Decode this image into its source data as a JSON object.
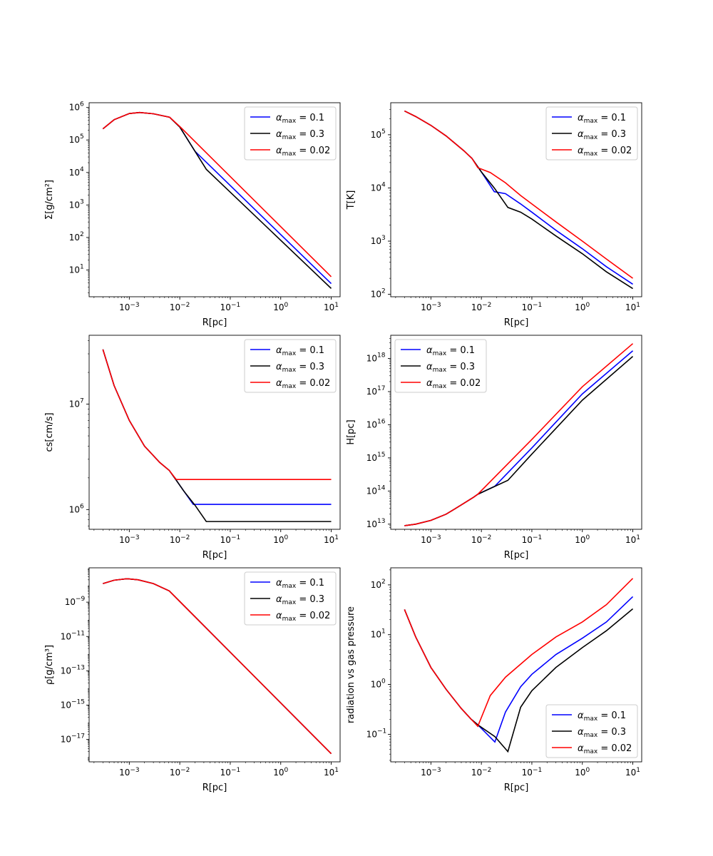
{
  "figure": {
    "chart_data": [
      {
        "type": "line",
        "xlabel": "R[pc]",
        "ylabel": "Σ[g/cm²]",
        "xscale": "log",
        "yscale": "log",
        "xlim": [
          0.00016,
          15
        ],
        "ylim": [
          1.5,
          1400000
        ],
        "xticks": [
          {
            "v": 0.001,
            "m": "10",
            "e": "−3"
          },
          {
            "v": 0.01,
            "m": "10",
            "e": "−2"
          },
          {
            "v": 0.1,
            "m": "10",
            "e": "−1"
          },
          {
            "v": 1,
            "m": "10",
            "e": "0"
          },
          {
            "v": 10,
            "m": "10",
            "e": "1"
          }
        ],
        "yticks": [
          {
            "v": 10,
            "m": "10",
            "e": "1"
          },
          {
            "v": 100,
            "m": "10",
            "e": "2"
          },
          {
            "v": 1000,
            "m": "10",
            "e": "3"
          },
          {
            "v": 10000,
            "m": "10",
            "e": "4"
          },
          {
            "v": 100000,
            "m": "10",
            "e": "5"
          },
          {
            "v": 1000000,
            "m": "10",
            "e": "6"
          }
        ],
        "legend": "upper-right",
        "series": [
          {
            "name": "α_max = 0.1",
            "color": "#0000ff",
            "x": [
              0.0003,
              0.0005,
              0.001,
              0.0016,
              0.003,
              0.0063,
              0.01,
              0.02,
              10
            ],
            "y": [
              220000,
              420000,
              650000,
              700000,
              640000,
              500000,
              250000,
              45000,
              3.8
            ]
          },
          {
            "name": "α_max = 0.3",
            "color": "#000000",
            "x": [
              0.0003,
              0.0005,
              0.001,
              0.0016,
              0.003,
              0.0063,
              0.01,
              0.0335,
              10
            ],
            "y": [
              220000,
              420000,
              650000,
              700000,
              640000,
              500000,
              250000,
              12500,
              2.7
            ]
          },
          {
            "name": "α_max = 0.02",
            "color": "#ff0000",
            "x": [
              0.0003,
              0.0005,
              0.001,
              0.0016,
              0.003,
              0.0063,
              0.01,
              10
            ],
            "y": [
              220000,
              420000,
              650000,
              700000,
              640000,
              500000,
              260000,
              6.2
            ]
          }
        ]
      },
      {
        "type": "line",
        "xlabel": "R[pc]",
        "ylabel": "T[K]",
        "xscale": "log",
        "yscale": "log",
        "xlim": [
          0.00016,
          15
        ],
        "ylim": [
          90,
          400000
        ],
        "xticks": [
          {
            "v": 0.001,
            "m": "10",
            "e": "−3"
          },
          {
            "v": 0.01,
            "m": "10",
            "e": "−2"
          },
          {
            "v": 0.1,
            "m": "10",
            "e": "−1"
          },
          {
            "v": 1,
            "m": "10",
            "e": "0"
          },
          {
            "v": 10,
            "m": "10",
            "e": "1"
          }
        ],
        "yticks": [
          {
            "v": 100,
            "m": "10",
            "e": "2"
          },
          {
            "v": 1000,
            "m": "10",
            "e": "3"
          },
          {
            "v": 10000,
            "m": "10",
            "e": "4"
          },
          {
            "v": 100000,
            "m": "10",
            "e": "5"
          }
        ],
        "legend": "upper-right",
        "series": [
          {
            "name": "α_max = 0.1",
            "color": "#0000ff",
            "x": [
              0.0003,
              0.0005,
              0.001,
              0.002,
              0.0045,
              0.0065,
              0.01,
              0.018,
              0.03,
              0.06,
              0.1,
              0.3,
              1,
              3,
              10
            ],
            "y": [
              280000,
              220000,
              150000,
              95000,
              50000,
              36000,
              20000,
              8500,
              7800,
              5000,
              3500,
              1600,
              720,
              330,
              155
            ]
          },
          {
            "name": "α_max = 0.3",
            "color": "#000000",
            "x": [
              0.0003,
              0.0005,
              0.001,
              0.002,
              0.0045,
              0.0065,
              0.01,
              0.018,
              0.0335,
              0.06,
              0.1,
              0.3,
              1,
              3,
              10
            ],
            "y": [
              280000,
              220000,
              150000,
              95000,
              50000,
              36000,
              20000,
              10000,
              4300,
              3500,
              2600,
              1250,
              580,
              265,
              128
            ]
          },
          {
            "name": "α_max = 0.02",
            "color": "#ff0000",
            "x": [
              0.0003,
              0.0005,
              0.001,
              0.002,
              0.0045,
              0.0065,
              0.0085,
              0.015,
              0.03,
              0.06,
              0.1,
              0.3,
              1,
              3,
              10
            ],
            "y": [
              280000,
              220000,
              150000,
              95000,
              50000,
              36000,
              24000,
              19500,
              12500,
              7200,
              5000,
              2300,
              1000,
              460,
              200
            ]
          }
        ]
      },
      {
        "type": "line",
        "xlabel": "R[pc]",
        "ylabel": "cs[cm/s]",
        "xscale": "log",
        "yscale": "log",
        "xlim": [
          0.00016,
          15
        ],
        "ylim": [
          650000,
          45000000
        ],
        "xticks": [
          {
            "v": 0.001,
            "m": "10",
            "e": "−3"
          },
          {
            "v": 0.01,
            "m": "10",
            "e": "−2"
          },
          {
            "v": 0.1,
            "m": "10",
            "e": "−1"
          },
          {
            "v": 1,
            "m": "10",
            "e": "0"
          },
          {
            "v": 10,
            "m": "10",
            "e": "1"
          }
        ],
        "yticks": [
          {
            "v": 1000000,
            "m": "10",
            "e": "6"
          },
          {
            "v": 10000000,
            "m": "10",
            "e": "7"
          }
        ],
        "legend": "upper-right",
        "series": [
          {
            "name": "α_max = 0.1",
            "color": "#0000ff",
            "x": [
              0.0003,
              0.0005,
              0.001,
              0.002,
              0.004,
              0.0062,
              0.0085,
              0.012,
              0.0185,
              10
            ],
            "y": [
              33000000,
              15000000,
              7000000,
              4000000,
              2800000,
              2350000,
              1900000,
              1500000,
              1120000,
              1120000
            ]
          },
          {
            "name": "α_max = 0.3",
            "color": "#000000",
            "x": [
              0.0003,
              0.0005,
              0.001,
              0.002,
              0.004,
              0.0062,
              0.0085,
              0.012,
              0.02,
              0.0335,
              10
            ],
            "y": [
              33000000,
              15000000,
              7000000,
              4000000,
              2800000,
              2350000,
              1900000,
              1500000,
              1100000,
              770000,
              770000
            ]
          },
          {
            "name": "α_max = 0.02",
            "color": "#ff0000",
            "x": [
              0.0003,
              0.0005,
              0.001,
              0.002,
              0.004,
              0.0062,
              0.0085,
              10
            ],
            "y": [
              33000000,
              15000000,
              7000000,
              4000000,
              2800000,
              2350000,
              1930000,
              1930000
            ]
          }
        ]
      },
      {
        "type": "line",
        "xlabel": "R[pc]",
        "ylabel": "H[pc]",
        "xscale": "log",
        "yscale": "log",
        "xlim": [
          0.00016,
          15
        ],
        "ylim": [
          7000000000000,
          5000000000000000000
        ],
        "xticks": [
          {
            "v": 0.001,
            "m": "10",
            "e": "−3"
          },
          {
            "v": 0.01,
            "m": "10",
            "e": "−2"
          },
          {
            "v": 0.1,
            "m": "10",
            "e": "−1"
          },
          {
            "v": 1,
            "m": "10",
            "e": "0"
          },
          {
            "v": 10,
            "m": "10",
            "e": "1"
          }
        ],
        "yticks": [
          {
            "v": 10000000000000,
            "m": "10",
            "e": "13"
          },
          {
            "v": 100000000000000,
            "m": "10",
            "e": "14"
          },
          {
            "v": 1000000000000000,
            "m": "10",
            "e": "15"
          },
          {
            "v": 10000000000000000,
            "m": "10",
            "e": "16"
          },
          {
            "v": 100000000000000000,
            "m": "10",
            "e": "17"
          },
          {
            "v": 1000000000000000000,
            "m": "10",
            "e": "18"
          }
        ],
        "legend": "upper-left",
        "series": [
          {
            "name": "α_max = 0.1",
            "color": "#0000ff",
            "x": [
              0.0003,
              0.0005,
              0.001,
              0.002,
              0.004,
              0.007,
              0.0085,
              0.0185,
              0.1,
              1,
              10
            ],
            "y": [
              9000000000000,
              10000000000000,
              13000000000000,
              20000000000000,
              38000000000000,
              65000000000000,
              80000000000000,
              140000000000000,
              2000000000000000,
              85000000000000000,
              1700000000000000000
            ]
          },
          {
            "name": "α_max = 0.3",
            "color": "#000000",
            "x": [
              0.0003,
              0.0005,
              0.001,
              0.002,
              0.004,
              0.007,
              0.0085,
              0.0335,
              0.1,
              1,
              10
            ],
            "y": [
              9000000000000,
              10000000000000,
              13000000000000,
              20000000000000,
              38000000000000,
              65000000000000,
              80000000000000,
              210000000000000,
              1300000000000000,
              55000000000000000,
              1150000000000000000
            ]
          },
          {
            "name": "α_max = 0.02",
            "color": "#ff0000",
            "x": [
              0.0003,
              0.0005,
              0.001,
              0.002,
              0.004,
              0.007,
              0.0085,
              0.1,
              1,
              10
            ],
            "y": [
              9000000000000,
              10000000000000,
              13000000000000,
              20000000000000,
              38000000000000,
              65000000000000,
              80000000000000,
              3600000000000000,
              140000000000000000,
              2800000000000000000
            ]
          }
        ]
      },
      {
        "type": "line",
        "xlabel": "R[pc]",
        "ylabel": "ρ[g/cm³]",
        "xscale": "log",
        "yscale": "log",
        "xlim": [
          0.00016,
          15
        ],
        "ylim": [
          5e-19,
          1e-07
        ],
        "xticks": [
          {
            "v": 0.001,
            "m": "10",
            "e": "−3"
          },
          {
            "v": 0.01,
            "m": "10",
            "e": "−2"
          },
          {
            "v": 0.1,
            "m": "10",
            "e": "−1"
          },
          {
            "v": 1,
            "m": "10",
            "e": "0"
          },
          {
            "v": 10,
            "m": "10",
            "e": "1"
          }
        ],
        "yticks": [
          {
            "v": 1e-17,
            "m": "10",
            "e": "−17"
          },
          {
            "v": 1e-15,
            "m": "10",
            "e": "−15"
          },
          {
            "v": 1e-13,
            "m": "10",
            "e": "−13"
          },
          {
            "v": 1e-11,
            "m": "10",
            "e": "−11"
          },
          {
            "v": 1e-09,
            "m": "10",
            "e": "−9"
          }
        ],
        "legend": "upper-right",
        "series": [
          {
            "name": "α_max = 0.1",
            "color": "#0000ff",
            "x": [
              0.0003,
              0.0005,
              0.0009,
              0.0015,
              0.003,
              0.0062,
              10
            ],
            "y": [
              1.2e-08,
              1.9e-08,
              2.3e-08,
              2e-08,
              1.2e-08,
              4.5e-09,
              1.5e-18
            ]
          },
          {
            "name": "α_max = 0.3",
            "color": "#000000",
            "x": [
              0.0003,
              0.0005,
              0.0009,
              0.0015,
              0.003,
              0.0062,
              10
            ],
            "y": [
              1.2e-08,
              1.9e-08,
              2.3e-08,
              2e-08,
              1.2e-08,
              4.5e-09,
              1.5e-18
            ]
          },
          {
            "name": "α_max = 0.02",
            "color": "#ff0000",
            "x": [
              0.0003,
              0.0005,
              0.0009,
              0.0015,
              0.003,
              0.0062,
              10
            ],
            "y": [
              1.2e-08,
              1.9e-08,
              2.3e-08,
              2e-08,
              1.2e-08,
              4.5e-09,
              1.5e-18
            ]
          }
        ]
      },
      {
        "type": "line",
        "xlabel": "R[pc]",
        "ylabel": "radiation vs gas pressure",
        "xscale": "log",
        "yscale": "log",
        "xlim": [
          0.00016,
          15
        ],
        "ylim": [
          0.028,
          220
        ],
        "xticks": [
          {
            "v": 0.001,
            "m": "10",
            "e": "−3"
          },
          {
            "v": 0.01,
            "m": "10",
            "e": "−2"
          },
          {
            "v": 0.1,
            "m": "10",
            "e": "−1"
          },
          {
            "v": 1,
            "m": "10",
            "e": "0"
          },
          {
            "v": 10,
            "m": "10",
            "e": "1"
          }
        ],
        "yticks": [
          {
            "v": 0.1,
            "m": "10",
            "e": "−1"
          },
          {
            "v": 1,
            "m": "10",
            "e": "0"
          },
          {
            "v": 10,
            "m": "10",
            "e": "1"
          },
          {
            "v": 100,
            "m": "10",
            "e": "2"
          }
        ],
        "legend": "lower-right",
        "series": [
          {
            "name": "α_max = 0.1",
            "color": "#0000ff",
            "x": [
              0.0003,
              0.0005,
              0.001,
              0.002,
              0.004,
              0.0063,
              0.0085,
              0.0185,
              0.03,
              0.06,
              0.1,
              0.3,
              1,
              3,
              10
            ],
            "y": [
              32,
              9,
              2.2,
              0.8,
              0.33,
              0.2,
              0.155,
              0.07,
              0.28,
              0.9,
              1.6,
              4,
              8.5,
              18,
              58
            ]
          },
          {
            "name": "α_max = 0.3",
            "color": "#000000",
            "x": [
              0.0003,
              0.0005,
              0.001,
              0.002,
              0.004,
              0.0063,
              0.0085,
              0.0185,
              0.0335,
              0.06,
              0.1,
              0.3,
              1,
              3,
              10
            ],
            "y": [
              32,
              9,
              2.2,
              0.8,
              0.33,
              0.2,
              0.155,
              0.09,
              0.045,
              0.35,
              0.75,
              2.2,
              5.5,
              12,
              33
            ]
          },
          {
            "name": "α_max = 0.02",
            "color": "#ff0000",
            "x": [
              0.0003,
              0.0005,
              0.001,
              0.002,
              0.004,
              0.0063,
              0.0085,
              0.015,
              0.03,
              0.1,
              0.3,
              1,
              3,
              10
            ],
            "y": [
              32,
              9,
              2.2,
              0.8,
              0.33,
              0.2,
              0.145,
              0.6,
              1.4,
              4,
              9,
              18,
              40,
              135
            ]
          }
        ]
      }
    ]
  }
}
